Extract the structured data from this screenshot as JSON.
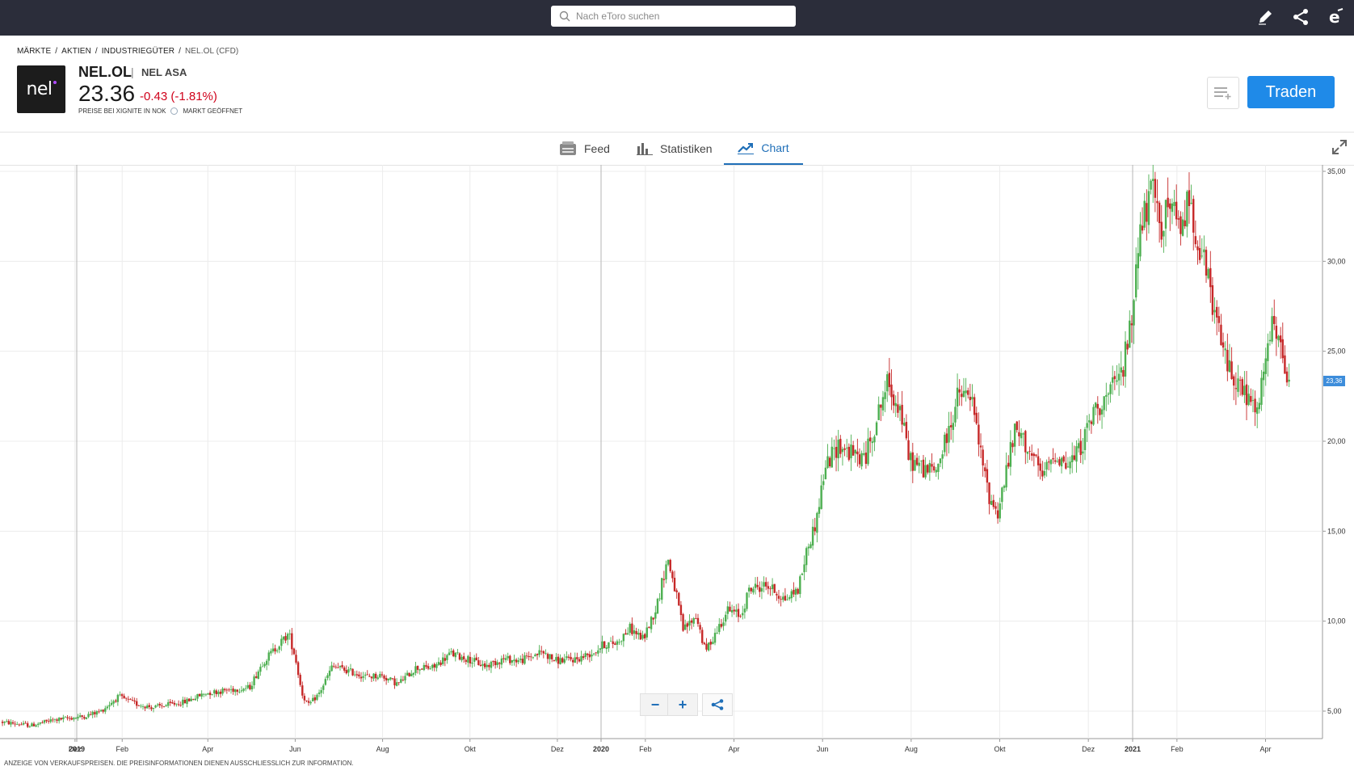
{
  "topbar": {
    "search_placeholder": "Nach eToro suchen",
    "icons": [
      "pencil-icon",
      "share-icon",
      "etoro-logo-icon"
    ]
  },
  "breadcrumb": [
    "MÄRKTE",
    "AKTIEN",
    "INDUSTRIEGÜTER",
    "NEL.OL (CFD)"
  ],
  "instrument": {
    "logo_text": "nel",
    "ticker": "NEL.OL",
    "separator": "|",
    "company": "NEL ASA",
    "price": "23.36",
    "change": "-0.43 (-1.81%)",
    "price_note": "PREISE BEI XIGNITE IN NOK",
    "market_status": "MARKT GEÖFFNET",
    "trade_button": "Traden"
  },
  "tabs": [
    {
      "label": "Feed",
      "icon": "feed-icon",
      "active": false
    },
    {
      "label": "Statistiken",
      "icon": "bar-chart-icon",
      "active": false
    },
    {
      "label": "Chart",
      "icon": "line-chart-icon",
      "active": true
    }
  ],
  "chart_controls": {
    "zoom_out": "−",
    "zoom_in": "+",
    "share_icon": "share-icon"
  },
  "current_price_tag": "23,36",
  "footer_note": "ANZEIGE VON VERKAUFSPREISEN. DIE PREISINFORMATIONEN DIENEN AUSSCHLIESSLICH ZUR INFORMATION.",
  "chart_data": {
    "type": "candlestick",
    "y_ticks": [
      "5,00",
      "10,00",
      "15,00",
      "20,00",
      "25,00",
      "30,00",
      "35,00"
    ],
    "ylim": [
      2.5,
      35.3
    ],
    "x_ticks": [
      {
        "label": "Dez",
        "t": -0.04
      },
      {
        "label": "2019",
        "t": 0,
        "year": true
      },
      {
        "label": "Feb",
        "t": 1.04
      },
      {
        "label": "Apr",
        "t": 3
      },
      {
        "label": "Jun",
        "t": 5
      },
      {
        "label": "Aug",
        "t": 7
      },
      {
        "label": "Okt",
        "t": 9
      },
      {
        "label": "Dez",
        "t": 11
      },
      {
        "label": "2020",
        "t": 12,
        "year": true
      },
      {
        "label": "Feb",
        "t": 13
      },
      {
        "label": "Apr",
        "t": 15
      },
      {
        "label": "Jun",
        "t": 17
      },
      {
        "label": "Aug",
        "t": 19
      },
      {
        "label": "Okt",
        "t": 21
      },
      {
        "label": "Dez",
        "t": 23
      },
      {
        "label": "2021",
        "t": 24,
        "year": true
      },
      {
        "label": "Feb",
        "t": 25
      },
      {
        "label": "Apr",
        "t": 27
      }
    ],
    "price_path": [
      [
        -1.7,
        4.4
      ],
      [
        -1.0,
        4.2
      ],
      [
        -0.5,
        4.5
      ],
      [
        0.2,
        4.7
      ],
      [
        0.6,
        5.0
      ],
      [
        1.0,
        5.8
      ],
      [
        1.4,
        5.4
      ],
      [
        1.8,
        5.2
      ],
      [
        2.5,
        5.5
      ],
      [
        3.0,
        6.0
      ],
      [
        3.6,
        6.2
      ],
      [
        4.0,
        6.3
      ],
      [
        4.3,
        7.7
      ],
      [
        4.6,
        8.5
      ],
      [
        4.9,
        9.3
      ],
      [
        5.05,
        8.0
      ],
      [
        5.2,
        6.0
      ],
      [
        5.35,
        5.3
      ],
      [
        5.6,
        6.0
      ],
      [
        5.9,
        7.5
      ],
      [
        6.3,
        7.2
      ],
      [
        6.7,
        6.9
      ],
      [
        7.0,
        7.0
      ],
      [
        7.4,
        6.5
      ],
      [
        7.8,
        7.4
      ],
      [
        8.2,
        7.4
      ],
      [
        8.6,
        8.2
      ],
      [
        9.0,
        7.9
      ],
      [
        9.4,
        7.5
      ],
      [
        9.8,
        7.9
      ],
      [
        10.2,
        7.8
      ],
      [
        10.7,
        8.3
      ],
      [
        11.0,
        7.8
      ],
      [
        11.5,
        7.9
      ],
      [
        11.9,
        8.3
      ],
      [
        12.1,
        8.7
      ],
      [
        12.4,
        8.8
      ],
      [
        12.7,
        9.6
      ],
      [
        13.0,
        9.0
      ],
      [
        13.3,
        10.8
      ],
      [
        13.55,
        13.5
      ],
      [
        13.7,
        12.0
      ],
      [
        13.9,
        9.5
      ],
      [
        14.2,
        10.3
      ],
      [
        14.4,
        8.3
      ],
      [
        14.6,
        9.2
      ],
      [
        14.9,
        10.6
      ],
      [
        15.2,
        10.3
      ],
      [
        15.4,
        11.8
      ],
      [
        15.8,
        12.0
      ],
      [
        16.2,
        11.2
      ],
      [
        16.5,
        11.8
      ],
      [
        16.7,
        14.0
      ],
      [
        16.9,
        15.5
      ],
      [
        17.1,
        18.5
      ],
      [
        17.4,
        19.8
      ],
      [
        17.7,
        19.3
      ],
      [
        18.0,
        19.0
      ],
      [
        18.3,
        21.5
      ],
      [
        18.5,
        23.2
      ],
      [
        18.8,
        21.8
      ],
      [
        19.0,
        19.0
      ],
      [
        19.3,
        18.5
      ],
      [
        19.6,
        18.3
      ],
      [
        19.9,
        20.6
      ],
      [
        20.1,
        22.5
      ],
      [
        20.4,
        22.5
      ],
      [
        20.6,
        19.5
      ],
      [
        20.8,
        17.0
      ],
      [
        21.0,
        16.0
      ],
      [
        21.2,
        18.4
      ],
      [
        21.4,
        20.6
      ],
      [
        21.7,
        19.6
      ],
      [
        22.0,
        18.0
      ],
      [
        22.3,
        19.3
      ],
      [
        22.6,
        18.6
      ],
      [
        22.9,
        19.8
      ],
      [
        23.2,
        21.8
      ],
      [
        23.5,
        22.5
      ],
      [
        23.8,
        23.8
      ],
      [
        24.05,
        27.0
      ],
      [
        24.15,
        31.0
      ],
      [
        24.3,
        32.5
      ],
      [
        24.5,
        33.8
      ],
      [
        24.7,
        32.0
      ],
      [
        24.9,
        33.3
      ],
      [
        25.1,
        31.5
      ],
      [
        25.3,
        33.5
      ],
      [
        25.5,
        31.5
      ],
      [
        25.7,
        29.5
      ],
      [
        25.9,
        27.0
      ],
      [
        26.1,
        25.0
      ],
      [
        26.3,
        23.7
      ],
      [
        26.6,
        22.5
      ],
      [
        26.9,
        21.5
      ],
      [
        27.0,
        24.0
      ],
      [
        27.2,
        26.3
      ],
      [
        27.4,
        25.0
      ],
      [
        27.55,
        23.4
      ]
    ]
  }
}
